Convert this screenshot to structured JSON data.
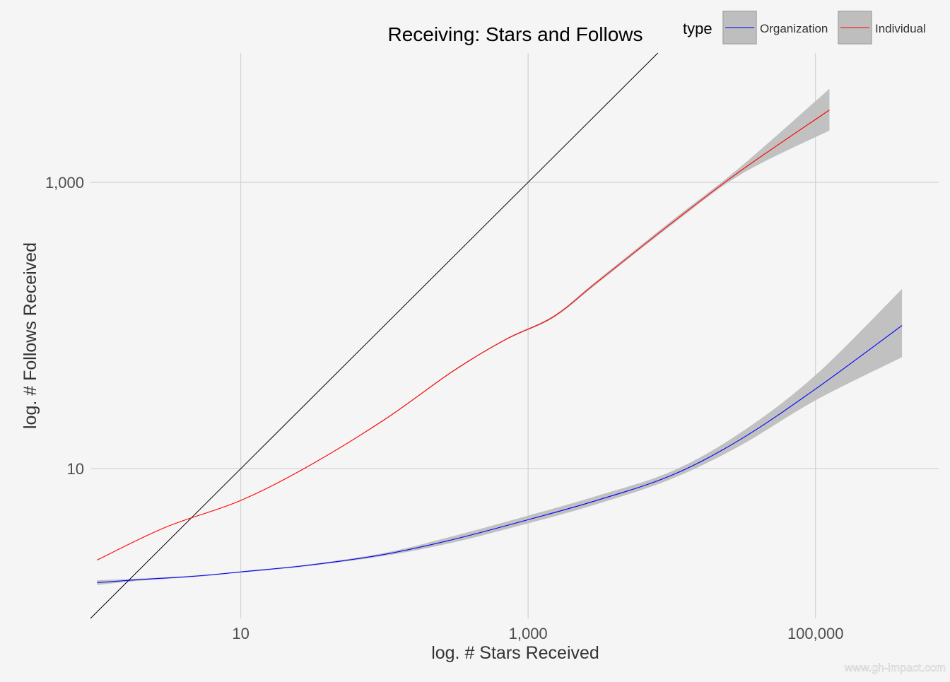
{
  "chart_data": {
    "type": "line",
    "title": "Receiving: Stars and Follows",
    "xlabel": "log. # Stars Received",
    "ylabel": "log. # Follows Received",
    "x_scale": "log10",
    "y_scale": "log10",
    "xlim": [
      0.9,
      720000
    ],
    "ylim": [
      0.9,
      8000
    ],
    "x_ticks": [
      10,
      1000,
      100000
    ],
    "x_tick_labels": [
      "10",
      "1,000",
      "100,000"
    ],
    "y_ticks": [
      10,
      1000
    ],
    "y_tick_labels": [
      "10",
      "1,000"
    ],
    "grid": true,
    "legend": {
      "title": "type",
      "placement": "top-right",
      "entries": [
        "Organization",
        "Individual"
      ]
    },
    "watermark": "www.gh-impact.com",
    "reference_line": {
      "name": "y = x",
      "color": "#000000"
    },
    "colors": {
      "Organization": "#0000ff",
      "Individual": "#ff0000",
      "band": "#bebebe",
      "grid": "#d4d4d4",
      "background": "#f5f5f5"
    },
    "series": [
      {
        "name": "Organization",
        "color": "#0000ff",
        "points": [
          {
            "x": 1,
            "y": 1.6,
            "lo": 1.54,
            "hi": 1.66
          },
          {
            "x": 2,
            "y": 1.68,
            "lo": 1.65,
            "hi": 1.71
          },
          {
            "x": 5,
            "y": 1.78,
            "lo": 1.76,
            "hi": 1.8
          },
          {
            "x": 10,
            "y": 1.9,
            "lo": 1.88,
            "hi": 1.92
          },
          {
            "x": 30,
            "y": 2.12,
            "lo": 2.09,
            "hi": 2.15
          },
          {
            "x": 100,
            "y": 2.52,
            "lo": 2.46,
            "hi": 2.58
          },
          {
            "x": 300,
            "y": 3.2,
            "lo": 3.05,
            "hi": 3.38
          },
          {
            "x": 1000,
            "y": 4.4,
            "lo": 4.15,
            "hi": 4.7
          },
          {
            "x": 3000,
            "y": 6.0,
            "lo": 5.65,
            "hi": 6.45
          },
          {
            "x": 10000,
            "y": 9.0,
            "lo": 8.5,
            "hi": 9.6
          },
          {
            "x": 30000,
            "y": 16,
            "lo": 14.5,
            "hi": 17.8
          },
          {
            "x": 100000,
            "y": 36,
            "lo": 30,
            "hi": 45
          },
          {
            "x": 400000,
            "y": 100,
            "lo": 60,
            "hi": 180
          }
        ]
      },
      {
        "name": "Individual",
        "color": "#ff0000",
        "points": [
          {
            "x": 1,
            "y": 2.3,
            "lo": 2.3,
            "hi": 2.3
          },
          {
            "x": 3,
            "y": 3.9,
            "lo": 3.89,
            "hi": 3.91
          },
          {
            "x": 10,
            "y": 6.0,
            "lo": 5.98,
            "hi": 6.02
          },
          {
            "x": 30,
            "y": 10.5,
            "lo": 10.45,
            "hi": 10.55
          },
          {
            "x": 100,
            "y": 22,
            "lo": 21.8,
            "hi": 22.2
          },
          {
            "x": 300,
            "y": 48,
            "lo": 47.5,
            "hi": 48.5
          },
          {
            "x": 700,
            "y": 80,
            "lo": 79,
            "hi": 81
          },
          {
            "x": 1500,
            "y": 115,
            "lo": 113,
            "hi": 117
          },
          {
            "x": 3000,
            "y": 200,
            "lo": 195,
            "hi": 205
          },
          {
            "x": 10000,
            "y": 520,
            "lo": 505,
            "hi": 540
          },
          {
            "x": 30000,
            "y": 1200,
            "lo": 1130,
            "hi": 1280
          },
          {
            "x": 125000,
            "y": 3200,
            "lo": 2300,
            "hi": 4500
          }
        ]
      }
    ]
  }
}
